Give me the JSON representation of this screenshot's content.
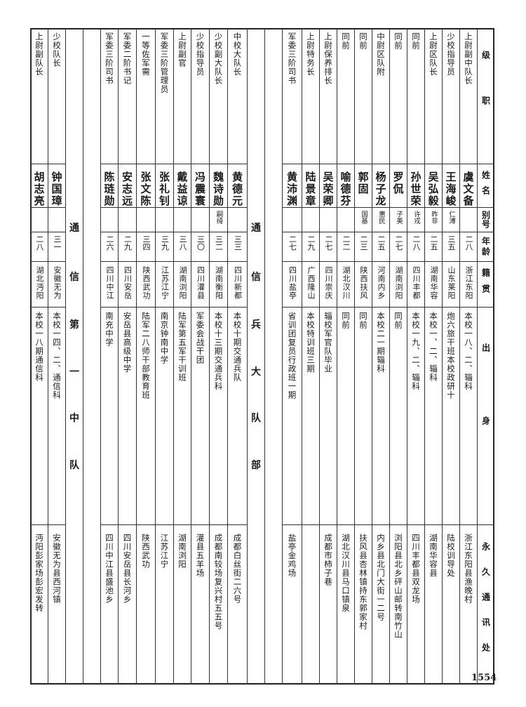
{
  "header": {
    "job": "级职",
    "name": "姓名",
    "alias": "别号",
    "age": "年龄",
    "native": "籍贯",
    "origin": "出身",
    "address": "永久通讯处"
  },
  "columns": [
    {
      "type": "record",
      "job": "上尉副中队长",
      "name": "虞文备",
      "alias": "",
      "age": "二八",
      "native": "浙江东阳",
      "origin": "本校一八、二、辎科",
      "address": "浙江东阳县渔晚村"
    },
    {
      "type": "record",
      "job": "少校指导员",
      "name": "王海峻",
      "alias": "仁溥",
      "age": "三五",
      "native": "山东莱阳",
      "origin": "炮六旅干班本校政研十",
      "address": "陆校训导处"
    },
    {
      "type": "record",
      "job": "上尉区队长",
      "name": "吴弘毅",
      "alias": "昨非",
      "age": "二五",
      "native": "湖南华容",
      "origin": "本校一、二、辎科",
      "address": "湖南华容县"
    },
    {
      "type": "record",
      "job": "同前",
      "name": "孙世荣",
      "alias": "许戎",
      "age": "二八",
      "native": "四川丰都",
      "origin": "本校一九、二、辎科",
      "address": "四川丰都县双龙场"
    },
    {
      "type": "record",
      "job": "同前",
      "name": "罗侃",
      "alias": "子美",
      "age": "二七",
      "native": "湖南浏阳",
      "origin": "同前",
      "address": "浏阳县北乡砰山邮转南竹山"
    },
    {
      "type": "record",
      "job": "中尉区队附",
      "name": "杨子龙",
      "alias": "惠民",
      "age": "二五",
      "native": "河南内乡",
      "origin": "本校二一期辎科",
      "address": "内乡县北门大街一二号"
    },
    {
      "type": "record",
      "job": "同前",
      "name": "郭固",
      "alias": "国基",
      "age": "二三",
      "native": "陕西扶风",
      "origin": "同前",
      "address": "扶风县杏林镇持东郭家村"
    },
    {
      "type": "record",
      "job": "同前",
      "name": "喻德芬",
      "alias": "",
      "age": "二二",
      "native": "湖北汉川",
      "origin": "同前",
      "address": "湖北汉川县马口镇泉"
    },
    {
      "type": "record",
      "job": "上尉保养排长",
      "name": "吴荣卿",
      "alias": "",
      "age": "二七",
      "native": "四川崇庆",
      "origin": "辎校军官队毕业",
      "address": "成都市柿子巷"
    },
    {
      "type": "record",
      "job": "上尉特务长",
      "name": "陆景章",
      "alias": "",
      "age": "二九",
      "native": "广西隆山",
      "origin": "本校特训班三期",
      "address": ""
    },
    {
      "type": "record",
      "job": "军委三阶司书",
      "name": "黄沛渊",
      "alias": "",
      "age": "二七",
      "native": "四川盐亭",
      "origin": "省训团复员行政班一期",
      "address": "盐亭金鸡场"
    },
    {
      "type": "blank"
    },
    {
      "type": "section",
      "label": "通信兵大队部"
    },
    {
      "type": "record",
      "job": "中校大队长",
      "name": "黄德元",
      "alias": "",
      "age": "三三",
      "native": "四川新都",
      "origin": "本校十期交通兵队",
      "address": "成都白丝街二六号"
    },
    {
      "type": "record",
      "job": "少校副大队长",
      "name": "魏诗勋",
      "alias": "嗣绮",
      "age": "三二",
      "native": "湖南衡阳",
      "origin": "本校十三期交通兵科",
      "address": "成都南较场复兴村五五号"
    },
    {
      "type": "record",
      "job": "少校指导员",
      "name": "冯震寰",
      "alias": "",
      "age": "三〇",
      "native": "四川灌县",
      "origin": "军委会战干团",
      "address": "灌县五羊场"
    },
    {
      "type": "record",
      "job": "上尉副官",
      "name": "戴益谅",
      "alias": "",
      "age": "三八",
      "native": "湖南浏阳",
      "origin": "陆军第五军干训班",
      "address": "湖南浏阳"
    },
    {
      "type": "record",
      "job": "军委三阶管理员",
      "name": "张礼钊",
      "alias": "",
      "age": "三九",
      "native": "江苏江宁",
      "origin": "南京钟南中学",
      "address": "江苏江宁"
    },
    {
      "type": "record",
      "job": "一等佐军需",
      "name": "张文陈",
      "alias": "",
      "age": "三四",
      "native": "陕西武功",
      "origin": "陆军二八师干部教育班",
      "address": "陕西武功"
    },
    {
      "type": "record",
      "job": "军委二阶书记",
      "name": "安志远",
      "alias": "",
      "age": "二九",
      "native": "四川安岳",
      "origin": "安岳县高级中学",
      "address": "四川安岳县长河乡"
    },
    {
      "type": "record",
      "job": "军委三阶司书",
      "name": "陈琏勋",
      "alias": "",
      "age": "二六",
      "native": "四川中江",
      "origin": "南充中学",
      "address": "四川中江县盛池乡"
    },
    {
      "type": "blank"
    },
    {
      "type": "section",
      "label": "通信第一中队"
    },
    {
      "type": "record",
      "job": "少校队长",
      "name": "钟国璋",
      "alias": "",
      "age": "三一",
      "native": "安徽无为",
      "origin": "本校一四、二、通信科",
      "address": "安徽无为县西河镇"
    },
    {
      "type": "record",
      "job": "上尉副队长",
      "name": "胡志亮",
      "alias": "",
      "age": "二八",
      "native": "湖北沔阳",
      "origin": "本校一八期通信科",
      "address": "沔阳彭家场彭宏发转"
    }
  ],
  "page_number": "1554"
}
